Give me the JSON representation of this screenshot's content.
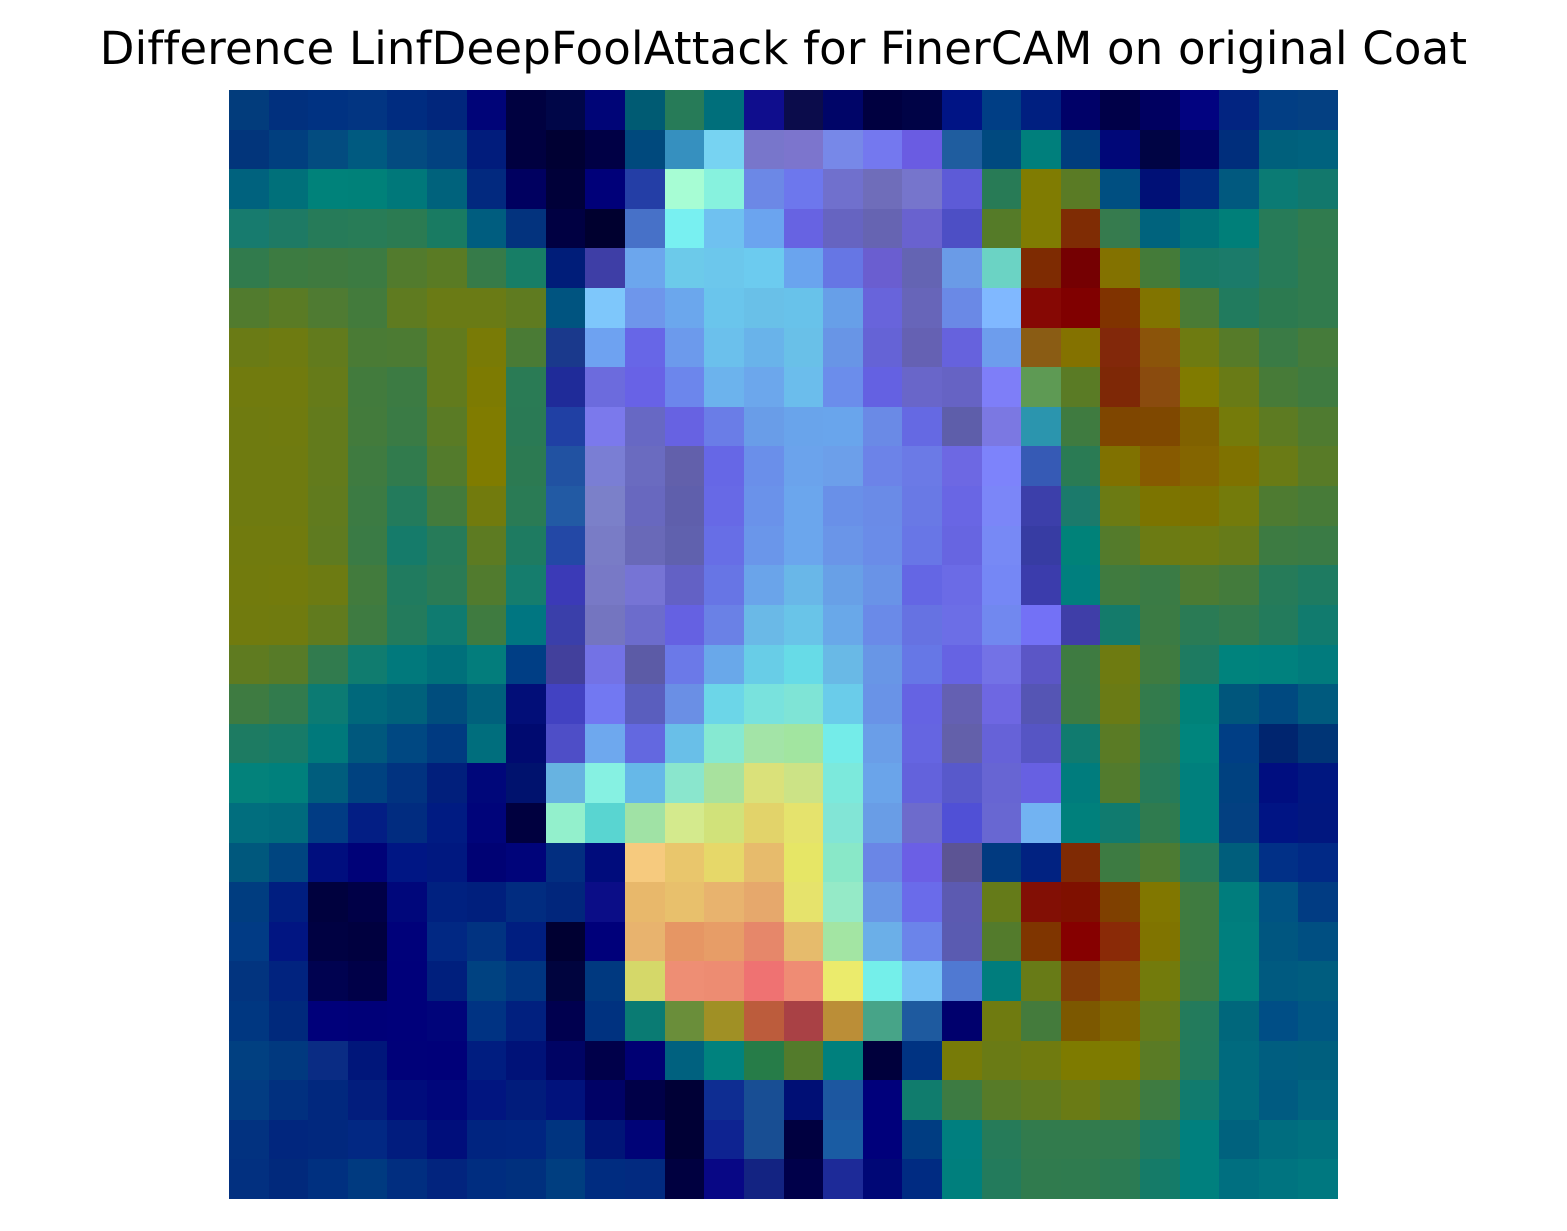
{
  "chart_data": {
    "type": "heatmap",
    "title": "Difference LinfDeepFoolAttack for FinerCAM on original Coat",
    "xlabel": "",
    "ylabel": "",
    "axes_visible": false,
    "grid": false,
    "colormap_note": "jet heatmap overlaid on grayscale coat image",
    "rows": 28,
    "cols": 28,
    "cells": [
      [
        "#023c7c",
        "#01307e",
        "#003282",
        "#023582",
        "#002c80",
        "#01267c",
        "#000478",
        "#000140",
        "#000648",
        "#000577",
        "#005b73",
        "#277b58",
        "#006f7b",
        "#0f0d8d",
        "#0b0c4b",
        "#000568",
        "#000040",
        "#000346",
        "#001485",
        "#003e85",
        "#001f80",
        "#000168",
        "#000048",
        "#000060",
        "#020380",
        "#022481",
        "#023e84",
        "#044082"
      ],
      [
        "#02357b",
        "#013f7f",
        "#034c80",
        "#005a80",
        "#034b80",
        "#024280",
        "#011c7c",
        "#000040",
        "#000033",
        "#000045",
        "#00497d",
        "#3690bf",
        "#77d3f2",
        "#7876cb",
        "#7c75cd",
        "#7788e8",
        "#7478ef",
        "#6a5ce2",
        "#1f5d9f",
        "#00497f",
        "#007f7c",
        "#003d7d",
        "#000778",
        "#000444",
        "#000466",
        "#002e7c",
        "#00607c",
        "#00627e"
      ],
      [
        "#00627e",
        "#00707a",
        "#00827a",
        "#008179",
        "#00787a",
        "#00627c",
        "#02297f",
        "#000060",
        "#000039",
        "#000079",
        "#243ea6",
        "#a7fdd4",
        "#87f2de",
        "#6c88e6",
        "#6d77ed",
        "#7070cd",
        "#6f6dba",
        "#7675cc",
        "#5d5bd7",
        "#287b56",
        "#807c02",
        "#5a7b25",
        "#004f81",
        "#001076",
        "#002c80",
        "#01597f",
        "#0b7b74",
        "#12786c"
      ],
      [
        "#177b6e",
        "#1e7a64",
        "#267b59",
        "#287c57",
        "#2b7b52",
        "#197b62",
        "#005d7f",
        "#03337e",
        "#000042",
        "#00002f",
        "#4771c8",
        "#78f0f1",
        "#6fc1f0",
        "#6ba4ef",
        "#6763e2",
        "#6664c1",
        "#6664b2",
        "#6962cf",
        "#4d4fc5",
        "#557b28",
        "#807c02",
        "#7f2c04",
        "#367b4e",
        "#00637d",
        "#007279",
        "#007f79",
        "#277b58",
        "#307b4e"
      ],
      [
        "#317b4d",
        "#3c7b41",
        "#3f7a3f",
        "#3c7b42",
        "#527b2d",
        "#5a7b24",
        "#367b49",
        "#177e66",
        "#001d79",
        "#3e3ea6",
        "#6ca6ed",
        "#6ccaea",
        "#6cc7ec",
        "#6ccbef",
        "#6aa4ee",
        "#6676e4",
        "#6a5ed0",
        "#6464b3",
        "#6a9be7",
        "#6bd3c4",
        "#7e2b02",
        "#750002",
        "#837200",
        "#447b39",
        "#197a66",
        "#1b7b6a",
        "#277b58",
        "#317b4d"
      ],
      [
        "#517b2e",
        "#5a7b25",
        "#4f7b32",
        "#437b3c",
        "#5f7b20",
        "#6a7b15",
        "#6a7b15",
        "#5f7b20",
        "#005480",
        "#7ec7fb",
        "#6e96eb",
        "#6ba7ed",
        "#6ac5ec",
        "#69c0e8",
        "#68c2ea",
        "#679fe8",
        "#6864db",
        "#6765b9",
        "#6a89e6",
        "#80b8ff",
        "#860804",
        "#800000",
        "#803300",
        "#817400",
        "#4a7b35",
        "#217b5e",
        "#2c7a50",
        "#317b4d"
      ],
      [
        "#6a7b15",
        "#6e7b11",
        "#627b1d",
        "#4a7b35",
        "#4c7b33",
        "#627b1d",
        "#797b06",
        "#4a7b35",
        "#1a398c",
        "#6ea2f1",
        "#6766e7",
        "#6c9aec",
        "#6bc0ec",
        "#69b3ea",
        "#69c0e8",
        "#6895e6",
        "#6563d6",
        "#6561b3",
        "#6662dd",
        "#6d9ded",
        "#8a5c14",
        "#847200",
        "#82280a",
        "#8b540a",
        "#6e7b11",
        "#567b29",
        "#3a7b45",
        "#457b3a"
      ],
      [
        "#717b0e",
        "#717b0e",
        "#667b19",
        "#427b3d",
        "#3c7b43",
        "#627b1d",
        "#7d7b02",
        "#2a7b55",
        "#1f2b99",
        "#6c6bdd",
        "#6862e6",
        "#6c86ec",
        "#6cb3ed",
        "#6ca7ec",
        "#6bbdec",
        "#6b8deb",
        "#6461e2",
        "#6966c9",
        "#6663c4",
        "#7e7ef8",
        "#5e9a54",
        "#5a7b25",
        "#7e2806",
        "#8a4b0e",
        "#807b00",
        "#697b16",
        "#477b38",
        "#3f7b40"
      ],
      [
        "#6f7b10",
        "#707b0f",
        "#637b1c",
        "#437b3c",
        "#3a7b45",
        "#5a7b25",
        "#807c00",
        "#2a7a55",
        "#2040a4",
        "#7b79ec",
        "#6768c4",
        "#6762e2",
        "#6a7de7",
        "#699de8",
        "#69a4eb",
        "#69a5ec",
        "#6a8ae6",
        "#6569e3",
        "#5e5eaa",
        "#7b78e2",
        "#2b95ae",
        "#3f7b40",
        "#7f4600",
        "#7f4800",
        "#806100",
        "#757b0a",
        "#5d7b22",
        "#4f7b30"
      ],
      [
        "#6f7b10",
        "#6f7b10",
        "#637b1c",
        "#3f7b40",
        "#317b4d",
        "#537b2c",
        "#807c00",
        "#2c7a52",
        "#2152a2",
        "#7a7ed4",
        "#6a6bc0",
        "#6260ab",
        "#6667e6",
        "#6a8fea",
        "#6ba3ec",
        "#6c9fea",
        "#6c83e8",
        "#6b7ae6",
        "#6d68e3",
        "#7d83fb",
        "#365ab5",
        "#2a7b54",
        "#807100",
        "#875a00",
        "#846500",
        "#7f7200",
        "#6a7b15",
        "#587b27"
      ],
      [
        "#6f7b10",
        "#6f7b10",
        "#617b1e",
        "#3c7b43",
        "#237b5c",
        "#437b3c",
        "#727b0d",
        "#2a7b55",
        "#225aa4",
        "#7b80c9",
        "#6868bf",
        "#5f5fac",
        "#6769e6",
        "#6a92ea",
        "#6ba6ed",
        "#6990e8",
        "#6a8be7",
        "#6979e5",
        "#6966e4",
        "#7b86f8",
        "#3c3faa",
        "#1b7a6b",
        "#6c7b13",
        "#7c7400",
        "#7d7200",
        "#747b0b",
        "#4e7b31",
        "#477b38"
      ],
      [
        "#717b0e",
        "#717b0e",
        "#5f7b20",
        "#3a7b45",
        "#157b6a",
        "#267b59",
        "#5d7b22",
        "#1e7b61",
        "#2348a6",
        "#797cc6",
        "#6969b8",
        "#6061ae",
        "#676ee6",
        "#6a96ea",
        "#6ba6ed",
        "#6a95e8",
        "#6a8ce8",
        "#6876e6",
        "#6765e1",
        "#7789f5",
        "#373ca3",
        "#008279",
        "#547b2b",
        "#6c7b13",
        "#6e7b11",
        "#667b19",
        "#3d7b42",
        "#3a7b45"
      ],
      [
        "#727b0d",
        "#737b0c",
        "#6d7b12",
        "#427b3d",
        "#207b5f",
        "#2a7b55",
        "#517b2e",
        "#157d6d",
        "#3b3ab7",
        "#7879c6",
        "#7674d5",
        "#6361c5",
        "#6775e5",
        "#6aa4ea",
        "#69b7e8",
        "#68a0e7",
        "#6993e7",
        "#6466e4",
        "#6b6be6",
        "#7587f5",
        "#3b3cac",
        "#007f7e",
        "#407b3f",
        "#3a7b45",
        "#4c7b33",
        "#437b3c",
        "#267b59",
        "#1e7b61"
      ],
      [
        "#717b0e",
        "#707b0f",
        "#617b1e",
        "#3e7b41",
        "#237b5c",
        "#0f7b70",
        "#3f7b40",
        "#007681",
        "#3a3faa",
        "#7475c0",
        "#6c6ccc",
        "#6561e2",
        "#6a81e6",
        "#6ab9e7",
        "#69c4e8",
        "#69a8e9",
        "#6a8ae8",
        "#6672e2",
        "#6c6ee6",
        "#7188ef",
        "#7371f6",
        "#3f3ea8",
        "#147b6b",
        "#3b7b44",
        "#2a7b55",
        "#327b4d",
        "#237b5c",
        "#117b6e"
      ],
      [
        "#5f7b20",
        "#577b28",
        "#317b4e",
        "#107c6f",
        "#01797c",
        "#00707b",
        "#037d7c",
        "#003e85",
        "#42409c",
        "#7372e5",
        "#5c5ba6",
        "#6b79e8",
        "#69a8ea",
        "#68cde7",
        "#67dbe7",
        "#69b9e6",
        "#6896e6",
        "#6677e6",
        "#6663e3",
        "#7372e6",
        "#5b56c6",
        "#3e7b41",
        "#6e7b11",
        "#3f7b40",
        "#1e7b61",
        "#00837d",
        "#00817e",
        "#017b7d"
      ],
      [
        "#3e7b41",
        "#327b4d",
        "#0c7b73",
        "#00687b",
        "#00617b",
        "#004d7d",
        "#00607c",
        "#020e78",
        "#4242c2",
        "#7278f2",
        "#5a5ebe",
        "#6a8fe5",
        "#6cd6e8",
        "#79e2dd",
        "#7fe4d6",
        "#6accea",
        "#6993e7",
        "#6563e3",
        "#6460b2",
        "#6e67e2",
        "#5555b4",
        "#3d7b42",
        "#6a7b15",
        "#337b4c",
        "#008279",
        "#00567c",
        "#004980",
        "#005a7e"
      ],
      [
        "#1d7b62",
        "#177b68",
        "#00797b",
        "#00587d",
        "#004882",
        "#003a81",
        "#006e7d",
        "#000a70",
        "#4e4ec7",
        "#6ea8ee",
        "#6368e0",
        "#69bfe8",
        "#86e9d2",
        "#a3e4a7",
        "#a2e5a0",
        "#74ece9",
        "#6a9ee8",
        "#6565e1",
        "#6360aa",
        "#6662d8",
        "#5655c4",
        "#107b6f",
        "#5a7b25",
        "#2c7b52",
        "#00857d",
        "#003e85",
        "#00256f",
        "#003576"
      ],
      [
        "#03827b",
        "#00807c",
        "#005d7d",
        "#004280",
        "#013380",
        "#011f7c",
        "#00077a",
        "#00126e",
        "#67b3e1",
        "#86f1e2",
        "#66b8e8",
        "#8ae6cd",
        "#a8e29e",
        "#dae17a",
        "#cce386",
        "#7ce9dc",
        "#6aa4ea",
        "#6362dc",
        "#5859cb",
        "#6765d3",
        "#6760e2",
        "#007c7d",
        "#527b2d",
        "#267b59",
        "#00807d",
        "#004180",
        "#000e80",
        "#001780"
      ],
      [
        "#016e7e",
        "#006b7d",
        "#013c84",
        "#031e84",
        "#012c80",
        "#001b82",
        "#00047a",
        "#00003f",
        "#93f0cc",
        "#59d5d1",
        "#a0e2a5",
        "#d4ea8d",
        "#d1e27a",
        "#e2d36a",
        "#e5e36d",
        "#82e5d6",
        "#699de6",
        "#6d6bcc",
        "#5050d6",
        "#6867d2",
        "#72b3f2",
        "#00807c",
        "#107b6f",
        "#2f7b4f",
        "#00807d",
        "#034081",
        "#001484",
        "#01177f"
      ],
      [
        "#00587d",
        "#004580",
        "#000e7e",
        "#000278",
        "#001684",
        "#001880",
        "#000274",
        "#00047a",
        "#022e80",
        "#000c7c",
        "#f6ca7e",
        "#e9c66c",
        "#e6d869",
        "#e7bb6c",
        "#e6e666",
        "#89e8c8",
        "#6a86e6",
        "#6b5fe5",
        "#5c5494",
        "#013a80",
        "#012281",
        "#7f2a04",
        "#3d7b42",
        "#4c7b33",
        "#267b59",
        "#005e7c",
        "#013087",
        "#012986"
      ],
      [
        "#003d80",
        "#001e80",
        "#00013e",
        "#000047",
        "#00077b",
        "#002180",
        "#001f7d",
        "#012c80",
        "#01267c",
        "#0b0d87",
        "#e8b86b",
        "#e8c06c",
        "#e8b36e",
        "#e6a86c",
        "#e6e36c",
        "#95eac7",
        "#6997e6",
        "#6a6bea",
        "#5c5ab1",
        "#657b19",
        "#820f05",
        "#7f1000",
        "#7f4000",
        "#817700",
        "#3f7b40",
        "#007d7d",
        "#005383",
        "#013c83"
      ],
      [
        "#013b85",
        "#011582",
        "#000142",
        "#00003f",
        "#00017a",
        "#012883",
        "#013381",
        "#001e80",
        "#000032",
        "#00007a",
        "#e8b36e",
        "#e69664",
        "#e79d67",
        "#e6876a",
        "#e6bb6c",
        "#a3e5a3",
        "#6bafe8",
        "#6b84ea",
        "#5a5bb1",
        "#537b2c",
        "#7f3500",
        "#860000",
        "#8a2a07",
        "#807400",
        "#3f7b40",
        "#007f7e",
        "#005680",
        "#004f82"
      ],
      [
        "#02347f",
        "#01237f",
        "#000250",
        "#000048",
        "#00007a",
        "#001f7d",
        "#004281",
        "#003581",
        "#00043e",
        "#003980",
        "#d5d869",
        "#ee8e74",
        "#ed8c72",
        "#ef7272",
        "#ef8c74",
        "#ebeb6c",
        "#74efea",
        "#76c2f4",
        "#5079d2",
        "#007d7d",
        "#687b17",
        "#823c06",
        "#894f04",
        "#737b0c",
        "#3c7b43",
        "#00807e",
        "#005a80",
        "#005d7f"
      ],
      [
        "#003781",
        "#00297c",
        "#00007a",
        "#000078",
        "#00007a",
        "#00047a",
        "#003383",
        "#01207f",
        "#00004f",
        "#003280",
        "#0a7b73",
        "#6a8e3a",
        "#a09025",
        "#bc5c3c",
        "#a94145",
        "#bb8e37",
        "#47a488",
        "#1e5a9f",
        "#00006d",
        "#6f7b10",
        "#447b3c",
        "#7c5800",
        "#7f6600",
        "#647b1b",
        "#237b5c",
        "#00677c",
        "#004e86",
        "#005783"
      ],
      [
        "#014081",
        "#01397f",
        "#0a2c84",
        "#00167a",
        "#000179",
        "#000079",
        "#001d80",
        "#001278",
        "#000464",
        "#00004a",
        "#000073",
        "#00617f",
        "#00827e",
        "#267c48",
        "#537b2b",
        "#00807d",
        "#00003c",
        "#003382",
        "#777b08",
        "#6a7b15",
        "#707b0f",
        "#7e7b00",
        "#7e7b00",
        "#5a7b25",
        "#227b5d",
        "#006a7e",
        "#005e80",
        "#005f7e"
      ],
      [
        "#023c82",
        "#01307f",
        "#01287e",
        "#021d7d",
        "#000c7c",
        "#00067b",
        "#011580",
        "#011c7c",
        "#01127c",
        "#000266",
        "#000048",
        "#000036",
        "#0e2d92",
        "#184e94",
        "#000f75",
        "#1c57a0",
        "#00007b",
        "#107c6d",
        "#3d7b42",
        "#577b28",
        "#5f7b20",
        "#6a7b15",
        "#5a7b25",
        "#3e7b41",
        "#117b6e",
        "#006b7e",
        "#005b81",
        "#006480"
      ],
      [
        "#023280",
        "#01267e",
        "#01287e",
        "#022883",
        "#011c7e",
        "#000e7b",
        "#002480",
        "#002581",
        "#003480",
        "#001577",
        "#000377",
        "#000035",
        "#0e2391",
        "#184e93",
        "#000040",
        "#1a5ca3",
        "#00007b",
        "#003d82",
        "#007f7f",
        "#267b59",
        "#327b4d",
        "#327b4d",
        "#317b4e",
        "#1e7b61",
        "#00807e",
        "#00627e",
        "#006d7f",
        "#00717f"
      ],
      [
        "#023080",
        "#01297c",
        "#003080",
        "#003a80",
        "#012e80",
        "#02247e",
        "#002d80",
        "#00307e",
        "#003e80",
        "#002c80",
        "#022a80",
        "#000040",
        "#080785",
        "#132382",
        "#00004a",
        "#1d2a98",
        "#000776",
        "#002b82",
        "#007f7d",
        "#237b5c",
        "#307b4e",
        "#2f7b4f",
        "#2b7b53",
        "#157b68",
        "#00807e",
        "#006f80",
        "#007480",
        "#007880"
      ]
    ]
  }
}
